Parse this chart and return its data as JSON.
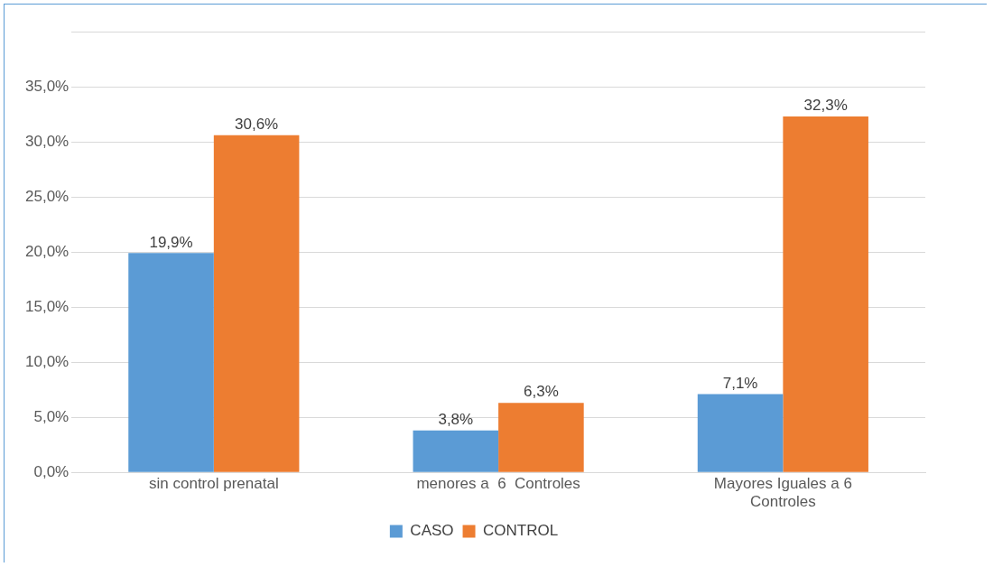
{
  "chart_data": {
    "type": "bar",
    "categories": [
      "sin control prenatal",
      "menores a  6  Controles",
      "Mayores Iguales a 6 Controles"
    ],
    "series": [
      {
        "name": "CASO",
        "color": "#5b9bd5",
        "values": [
          19.9,
          3.8,
          7.1
        ],
        "value_labels": [
          "19,9%",
          "3,8%",
          "7,1%"
        ]
      },
      {
        "name": "CONTROL",
        "color": "#ed7d31",
        "values": [
          30.6,
          6.3,
          32.3
        ],
        "value_labels": [
          "30,6%",
          "6,3%",
          "32,3%"
        ]
      }
    ],
    "ylim": [
      0,
      40
    ],
    "yticks": [
      {
        "value": 0,
        "label": "0,0%"
      },
      {
        "value": 5,
        "label": "5,0%"
      },
      {
        "value": 10,
        "label": "10,0%"
      },
      {
        "value": 15,
        "label": "15,0%"
      },
      {
        "value": 20,
        "label": "20,0%"
      },
      {
        "value": 25,
        "label": "25,0%"
      },
      {
        "value": 30,
        "label": "30,0%"
      },
      {
        "value": 35,
        "label": "35,0%"
      },
      {
        "value": 40,
        "label": null
      }
    ],
    "grid": "y",
    "legend": "bottom"
  }
}
